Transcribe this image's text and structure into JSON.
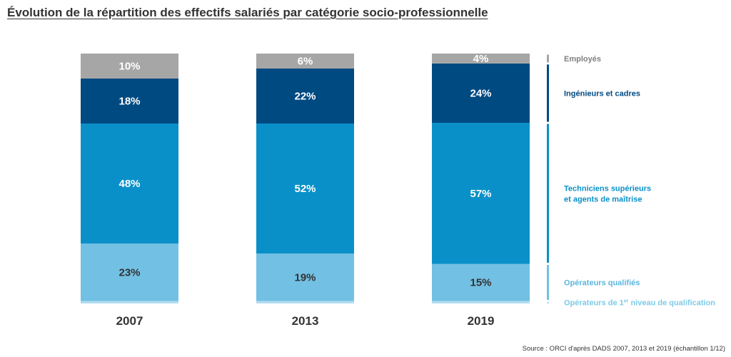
{
  "chart_data": {
    "type": "bar",
    "stacked": true,
    "title": "Évolution de la répartition des effectifs salariés par catégorie socio-professionnelle",
    "categories": [
      "2007",
      "2013",
      "2019"
    ],
    "ylim": [
      0,
      100
    ],
    "grid": false,
    "legend_position": "right",
    "series": [
      {
        "name": "Opérateurs de 1er niveau de qualification",
        "values": [
          1,
          1,
          1
        ],
        "color": "#b3dcef",
        "label_color": "#333333",
        "label_position": "above"
      },
      {
        "name": "Opérateurs qualifiés",
        "values": [
          23,
          19,
          15
        ],
        "color": "#72c0e3",
        "label_color": "#333333"
      },
      {
        "name": "Techniciens supérieurs et agents de maîtrise",
        "values": [
          48,
          52,
          57
        ],
        "color": "#0a90c8",
        "label_color": "#ffffff"
      },
      {
        "name": "Ingénieurs et cadres",
        "values": [
          18,
          22,
          24
        ],
        "color": "#004a82",
        "label_color": "#ffffff"
      },
      {
        "name": "Employés",
        "values": [
          10,
          6,
          4
        ],
        "color": "#a6a6a6",
        "label_color": "#ffffff"
      }
    ],
    "legend": [
      {
        "series": 4,
        "lines": [
          "Employés"
        ],
        "color": "#a6a6a6",
        "text_color": "#7f7f7f"
      },
      {
        "series": 3,
        "lines": [
          "Ingénieurs et cadres"
        ],
        "color": "#004a82",
        "text_color": "#004a82"
      },
      {
        "series": 2,
        "lines": [
          "Techniciens supérieurs",
          "et agents de maîtrise"
        ],
        "color": "#0a90c8",
        "text_color": "#0a90c8"
      },
      {
        "series": 1,
        "lines": [
          "Opérateurs qualifiés"
        ],
        "color": "#72c0e3",
        "text_color": "#5bb6df"
      },
      {
        "series": 0,
        "parts": [
          "Opérateurs de 1",
          "er",
          " niveau de qualification"
        ],
        "color": "#b3dcef",
        "text_color": "#7ccbe8"
      }
    ],
    "source": "Source : ORCI d'après DADS 2007, 2013 et 2019 (échantillon 1/12)"
  }
}
